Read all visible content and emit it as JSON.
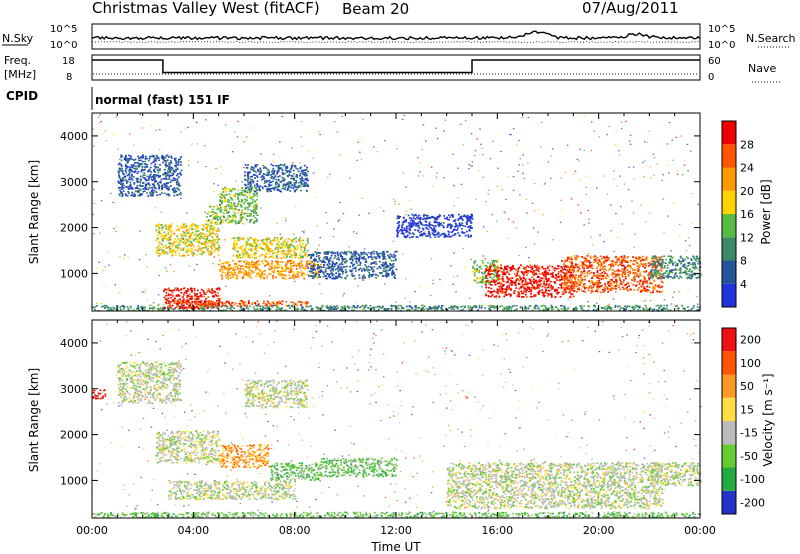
{
  "header": {
    "title": "Christmas Valley West (fitACF)",
    "beam": "Beam 20",
    "date": "07/Aug/2011"
  },
  "nsky_panel": {
    "left_label": "N.Sky",
    "right_label": "N.Search",
    "left_ticks": [
      "10^5",
      "10^0"
    ],
    "right_ticks": [
      "10^5",
      "10^0"
    ]
  },
  "freq_panel": {
    "left_label_1": "Freq.",
    "left_label_2": "[MHz]",
    "right_label": "Nave",
    "left_ticks": [
      "18",
      "8"
    ],
    "right_ticks": [
      "60",
      "0"
    ],
    "freq_steps": [
      {
        "from": 0,
        "to": 2.8,
        "value": 16
      },
      {
        "from": 2.8,
        "to": 15.0,
        "value": 11
      },
      {
        "from": 15.0,
        "to": 24,
        "value": 16
      }
    ]
  },
  "cpid": {
    "label": "CPID",
    "text": "normal (fast) 151 IF"
  },
  "chart_data": [
    {
      "type": "heatmap",
      "name": "power-panel",
      "ylabel": "Slant Range [km]",
      "xlabel": "",
      "ylim": [
        180,
        4500
      ],
      "xlim": [
        0,
        24
      ],
      "y_ticks": [
        1000,
        2000,
        3000,
        4000
      ],
      "colorbar": {
        "label": "Power [dB]",
        "ticks": [
          "4",
          "8",
          "12",
          "16",
          "20",
          "24",
          "28"
        ],
        "colors": [
          "#2233dd",
          "#225599",
          "#3a8a66",
          "#55bb44",
          "#ffd200",
          "#ff9900",
          "#ff5500",
          "#ee0000"
        ]
      },
      "regions": [
        {
          "t0": 0.0,
          "t1": 24.0,
          "r0": 200,
          "r1": 320,
          "level": 2
        },
        {
          "t0": 2.8,
          "t1": 5.0,
          "r0": 250,
          "r1": 700,
          "level": 7
        },
        {
          "t0": 3.0,
          "t1": 8.5,
          "r0": 300,
          "r1": 420,
          "level": 6
        },
        {
          "t0": 5.0,
          "t1": 9.0,
          "r0": 900,
          "r1": 1300,
          "level": 5
        },
        {
          "t0": 5.5,
          "t1": 8.5,
          "r0": 1350,
          "r1": 1800,
          "level": 4
        },
        {
          "t0": 2.5,
          "t1": 5.0,
          "r0": 1400,
          "r1": 2100,
          "level": 4
        },
        {
          "t0": 4.5,
          "t1": 6.5,
          "r0": 2100,
          "r1": 2500,
          "level": 3
        },
        {
          "t0": 5.0,
          "t1": 6.5,
          "r0": 2500,
          "r1": 2900,
          "level": 3
        },
        {
          "t0": 1.0,
          "t1": 3.5,
          "r0": 2700,
          "r1": 3600,
          "level": 1
        },
        {
          "t0": 6.0,
          "t1": 8.5,
          "r0": 2800,
          "r1": 3400,
          "level": 1
        },
        {
          "t0": 8.5,
          "t1": 12.0,
          "r0": 900,
          "r1": 1500,
          "level": 1
        },
        {
          "t0": 12.0,
          "t1": 15.0,
          "r0": 1800,
          "r1": 2300,
          "level": 0
        },
        {
          "t0": 15.0,
          "t1": 16.0,
          "r0": 800,
          "r1": 1300,
          "level": 3
        },
        {
          "t0": 15.5,
          "t1": 19.0,
          "r0": 500,
          "r1": 1200,
          "level": 7
        },
        {
          "t0": 18.5,
          "t1": 22.5,
          "r0": 600,
          "r1": 1400,
          "level": 6
        },
        {
          "t0": 22.0,
          "t1": 24.0,
          "r0": 900,
          "r1": 1400,
          "level": 2
        }
      ]
    },
    {
      "type": "heatmap",
      "name": "velocity-panel",
      "ylabel": "Slant Range [km]",
      "xlabel": "Time UT",
      "ylim": [
        180,
        4500
      ],
      "xlim": [
        0,
        24
      ],
      "y_ticks": [
        1000,
        2000,
        3000,
        4000
      ],
      "x_ticks": [
        "00:00",
        "04:00",
        "08:00",
        "12:00",
        "16:00",
        "20:00",
        "00:00"
      ],
      "colorbar": {
        "label": "Velocity [m s⁻¹]",
        "ticks": [
          "200",
          "100",
          "50",
          "15",
          "-15",
          "-50",
          "-100",
          "-200"
        ],
        "colors": [
          "#2233cc",
          "#22aa44",
          "#66cc33",
          "#bbbbbb",
          "#ffdd44",
          "#ff9922",
          "#ff5500",
          "#ee1111"
        ]
      },
      "regions": [
        {
          "t0": 0.0,
          "t1": 24.0,
          "r0": 200,
          "r1": 320,
          "level": 2
        },
        {
          "t0": 2.5,
          "t1": 5.0,
          "r0": 1400,
          "r1": 2100,
          "level": 3
        },
        {
          "t0": 5.0,
          "t1": 7.0,
          "r0": 1300,
          "r1": 1800,
          "level": 5
        },
        {
          "t0": 7.0,
          "t1": 9.0,
          "r0": 1000,
          "r1": 1400,
          "level": 2
        },
        {
          "t0": 9.0,
          "t1": 12.0,
          "r0": 1100,
          "r1": 1500,
          "level": 2
        },
        {
          "t0": 1.0,
          "t1": 3.5,
          "r0": 2700,
          "r1": 3600,
          "level": 3
        },
        {
          "t0": 6.0,
          "t1": 8.5,
          "r0": 2600,
          "r1": 3200,
          "level": 3
        },
        {
          "t0": 3.0,
          "t1": 8.0,
          "r0": 600,
          "r1": 1000,
          "level": 3
        },
        {
          "t0": 14.0,
          "t1": 22.5,
          "r0": 400,
          "r1": 1400,
          "level": 3
        },
        {
          "t0": 22.0,
          "t1": 24.0,
          "r0": 900,
          "r1": 1400,
          "level": 3
        },
        {
          "t0": 0.0,
          "t1": 0.5,
          "r0": 2800,
          "r1": 3000,
          "level": 7
        }
      ]
    }
  ]
}
